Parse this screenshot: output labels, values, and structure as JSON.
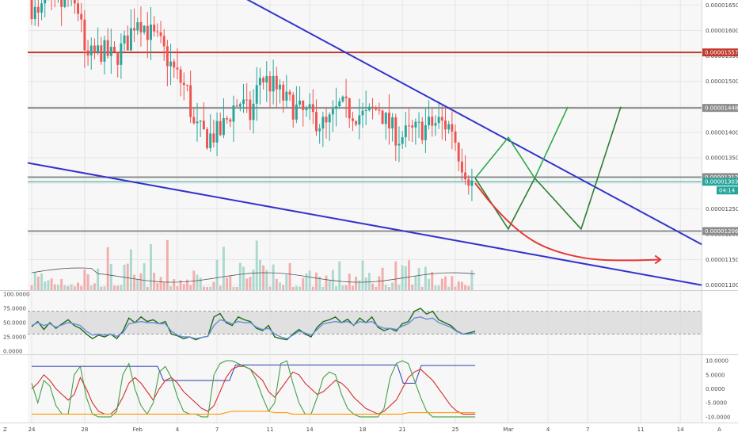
{
  "colors": {
    "up": "#26a69a",
    "down": "#ef5350",
    "volume_up": "#9fd3c7",
    "volume_down": "#f2a0a0",
    "trendline": "#3333cc",
    "resistance_red": "#c0392b",
    "level_gray": "#8c8c8c",
    "projection_green": "#2e7d32",
    "projection_lightgreen": "#2eaa4a",
    "projection_red": "#e53935",
    "current_price": "#26a69a"
  },
  "chart_data": [
    {
      "type": "candlestick",
      "name": "price",
      "ylim": [
        1.09e-05,
        1.66e-05
      ],
      "y_ticks": [
        "0.00001650",
        "0.00001600",
        "0.00001550",
        "0.00001500",
        "0.00001450",
        "0.00001400",
        "0.00001350",
        "0.00001300",
        "0.00001250",
        "0.00001200",
        "0.00001150",
        "0.00001100"
      ],
      "y_tick_values": [
        1.65e-05,
        1.6e-05,
        1.55e-05,
        1.5e-05,
        1.45e-05,
        1.4e-05,
        1.35e-05,
        1.3e-05,
        1.25e-05,
        1.2e-05,
        1.15e-05,
        1.1e-05
      ],
      "x_ticks": [
        "24",
        "28",
        "Feb",
        "4",
        "7",
        "11",
        "14",
        "18",
        "21",
        "25",
        "Mar",
        "4",
        "7",
        "11",
        "14"
      ],
      "x_tick_days": [
        0,
        4,
        8,
        11,
        14,
        18,
        21,
        25,
        28,
        32,
        36,
        39,
        42,
        46,
        49
      ],
      "x_range_days": [
        -0.3,
        50.6
      ],
      "bars_per_day": 4,
      "close_path": [
        [
          0,
          1.66e-05
        ],
        [
          0.8,
          1.62e-05
        ],
        [
          1.2,
          1.655e-05
        ],
        [
          2,
          1.64e-05
        ],
        [
          3,
          1.66e-05
        ],
        [
          4,
          1.63e-05
        ],
        [
          4.2,
          1.54e-05
        ],
        [
          5.5,
          1.56e-05
        ],
        [
          6.5,
          1.545e-05
        ],
        [
          7.5,
          1.58e-05
        ],
        [
          8.2,
          1.63e-05
        ],
        [
          9,
          1.6e-05
        ],
        [
          10,
          1.57e-05
        ],
        [
          11,
          1.52e-05
        ],
        [
          12,
          1.48e-05
        ],
        [
          12.5,
          1.41e-05
        ],
        [
          13.5,
          1.39e-05
        ],
        [
          14.5,
          1.4e-05
        ],
        [
          15.5,
          1.45e-05
        ],
        [
          16,
          1.46e-05
        ],
        [
          16.8,
          1.43e-05
        ],
        [
          17.5,
          1.51e-05
        ],
        [
          18.5,
          1.49e-05
        ],
        [
          19.5,
          1.46e-05
        ],
        [
          20.5,
          1.44e-05
        ],
        [
          21.5,
          1.43e-05
        ],
        [
          22.5,
          1.41e-05
        ],
        [
          23.5,
          1.45e-05
        ],
        [
          24.5,
          1.44e-05
        ],
        [
          25.5,
          1.43e-05
        ],
        [
          26.5,
          1.45e-05
        ],
        [
          27,
          1.42e-05
        ],
        [
          28,
          1.39e-05
        ],
        [
          29,
          1.4e-05
        ],
        [
          30,
          1.41e-05
        ],
        [
          31,
          1.42e-05
        ],
        [
          32,
          1.41e-05
        ],
        [
          32.6,
          1.35e-05
        ],
        [
          33.5,
          1.3e-05
        ]
      ],
      "levels": [
        {
          "value": 1.557e-05,
          "label": "0.00001557",
          "color": "#c0392b"
        },
        {
          "value": 1.448e-05,
          "label": "0.00001448",
          "color": "#8c8c8c"
        },
        {
          "value": 1.312e-05,
          "label": "0.00001312",
          "color": "#8c8c8c"
        },
        {
          "value": 1.206e-05,
          "label": "0.00001206",
          "color": "#8c8c8c"
        }
      ],
      "current_price": {
        "value": 1.303e-05,
        "label": "0.00001303",
        "countdown": "04:14"
      },
      "trendlines": [
        {
          "points": [
            [
              13.5,
              1.7e-05
            ],
            [
              50.6,
              1.18e-05
            ]
          ],
          "color": "#3333cc"
        },
        {
          "points": [
            [
              -0.3,
              1.34e-05
            ],
            [
              50.6,
              1.1e-05
            ]
          ],
          "color": "#3333cc"
        }
      ],
      "projections": [
        {
          "points": [
            [
              33.5,
              1.31e-05
            ],
            [
              36,
              1.39e-05
            ],
            [
              38,
              1.31e-05
            ],
            [
              40.5,
              1.45e-05
            ]
          ],
          "color": "#2eaa4a"
        },
        {
          "points": [
            [
              33.5,
              1.31e-05
            ],
            [
              36,
              1.21e-05
            ],
            [
              38,
              1.31e-05
            ],
            [
              41.5,
              1.21e-05
            ],
            [
              44.5,
              1.45e-05
            ]
          ],
          "color": "#2e7d32"
        },
        {
          "points": [
            [
              33.5,
              1.3e-05
            ],
            [
              35,
              1.25e-05
            ],
            [
              37,
              1.2e-05
            ],
            [
              39,
              1.17e-05
            ],
            [
              42,
              1.15e-05
            ],
            [
              45,
              1.148e-05
            ],
            [
              47.5,
              1.15e-05
            ]
          ],
          "color": "#e53935",
          "arrow": true
        }
      ]
    },
    {
      "type": "line",
      "name": "oscillator-1",
      "ylim": [
        0,
        100
      ],
      "y_ticks": [
        "100.0000",
        "75.0000",
        "50.0000",
        "25.0000",
        "0.0000"
      ],
      "y_tick_values": [
        100,
        75,
        50,
        25,
        0
      ],
      "band": [
        30,
        70
      ],
      "series": [
        {
          "values": [
            43,
            52,
            38,
            50,
            40,
            48,
            55,
            45,
            40,
            30,
            22,
            28,
            25,
            30,
            22,
            35,
            58,
            50,
            60,
            52,
            55,
            48,
            52,
            30,
            27,
            22,
            25,
            20,
            24,
            26,
            60,
            66,
            50,
            45,
            60,
            55,
            52,
            40,
            36,
            45,
            25,
            22,
            20,
            30,
            38,
            30,
            25,
            42,
            52,
            55,
            60,
            50,
            56,
            45,
            58,
            50,
            60,
            42,
            36,
            40,
            35,
            48,
            52,
            70,
            75,
            65,
            70,
            55,
            50,
            45,
            35,
            30,
            32,
            35
          ],
          "color": "#1b6b1b"
        },
        {
          "values": [
            45,
            50,
            45,
            48,
            42,
            46,
            50,
            48,
            45,
            35,
            28,
            30,
            28,
            30,
            26,
            32,
            48,
            50,
            52,
            50,
            50,
            48,
            48,
            35,
            28,
            25,
            25,
            22,
            24,
            26,
            45,
            55,
            52,
            48,
            52,
            50,
            50,
            42,
            38,
            40,
            30,
            25,
            22,
            28,
            35,
            32,
            28,
            38,
            48,
            50,
            52,
            50,
            52,
            46,
            52,
            50,
            52,
            44,
            40,
            40,
            38,
            44,
            48,
            58,
            60,
            56,
            58,
            50,
            46,
            42,
            34,
            30,
            30,
            32
          ],
          "color": "#6b8fd6"
        }
      ]
    },
    {
      "type": "line",
      "name": "oscillator-2",
      "ylim": [
        -12,
        12
      ],
      "y_ticks": [
        "10.0000",
        "5.0000",
        "0.0000",
        "-5.0000",
        "-10.0000"
      ],
      "y_tick_values": [
        10,
        5,
        0,
        -5,
        -10
      ],
      "series": [
        {
          "values": [
            8,
            8,
            8,
            8,
            8,
            8,
            8,
            8,
            8,
            8,
            8,
            8,
            8,
            8,
            8,
            8,
            8,
            8,
            8,
            8,
            8,
            8,
            3,
            3,
            3,
            3,
            3,
            3,
            3,
            3,
            3,
            3,
            3,
            3,
            8.5,
            8.5,
            8.5,
            8.5,
            8.5,
            8.5,
            8.5,
            8.5,
            8.5,
            8.5,
            8.5,
            8.5,
            8.5,
            8.5,
            8.5,
            8.5,
            8.5,
            8.5,
            8.5,
            8.5,
            8.5,
            8.5,
            8.5,
            8.5,
            8.5,
            8.5,
            8.5,
            8.5,
            2,
            2,
            2,
            8.3,
            8.3,
            8.3,
            8.3,
            8.3,
            8.3,
            8.3,
            8.3,
            8.3,
            8.3
          ],
          "color": "#3f51b5"
        },
        {
          "values": [
            0,
            2,
            5,
            3,
            0,
            -2,
            -4,
            -2,
            4,
            0,
            -5,
            -8,
            -9,
            -9,
            -7,
            -3,
            2,
            4,
            2,
            -1,
            -4,
            0,
            3,
            4,
            2,
            -1,
            -3,
            -5,
            -7,
            -8,
            -6,
            -1,
            4,
            7,
            8,
            8,
            7,
            5,
            3,
            -1,
            -3,
            0,
            3,
            6,
            5,
            2,
            0,
            -2,
            -1,
            1,
            3,
            2,
            0,
            -3,
            -5,
            -7,
            -8,
            -9,
            -8,
            -6,
            -4,
            0,
            4,
            6,
            7,
            5,
            3,
            0,
            -3,
            -6,
            -8,
            -9,
            -9,
            -9
          ],
          "color": "#d32f2f"
        },
        {
          "values": [
            2,
            -5,
            3,
            1,
            -6,
            -9,
            -9,
            5,
            8,
            -3,
            -9,
            -10,
            -10,
            -10,
            -8,
            5,
            9,
            0,
            -6,
            -9,
            -5,
            6,
            8,
            4,
            -3,
            -8,
            -9,
            -9,
            -10,
            -10,
            5,
            9,
            10,
            10,
            9,
            8,
            7,
            3,
            -3,
            -8,
            -5,
            9,
            10,
            2,
            -5,
            -9,
            -9,
            -3,
            4,
            6,
            5,
            -2,
            -7,
            -9,
            -10,
            -10,
            -10,
            -10,
            -7,
            4,
            9,
            10,
            9,
            3,
            -3,
            -8,
            -10,
            -10,
            -10,
            -10,
            -10,
            -10,
            -10,
            -10
          ],
          "color": "#43a047"
        },
        {
          "values": [
            -9,
            -9,
            -9,
            -9,
            -9,
            -9,
            -9,
            -9,
            -9,
            -9,
            -9,
            -9,
            -9,
            -9,
            -9,
            -9,
            -9,
            -9,
            -9,
            -9,
            -9,
            -9,
            -9,
            -9,
            -9,
            -9,
            -9,
            -9,
            -9,
            -9,
            -9,
            -9,
            -8.5,
            -8,
            -8,
            -8,
            -8,
            -8,
            -8,
            -8,
            -8.5,
            -8.5,
            -8.5,
            -9,
            -9,
            -9,
            -9,
            -9,
            -9,
            -9,
            -9,
            -9,
            -9,
            -9,
            -9,
            -9,
            -9,
            -9,
            -9,
            -9,
            -9,
            -9,
            -8.5,
            -8.5,
            -8.5,
            -8.5,
            -8.5,
            -8.5,
            -8.5,
            -8.5,
            -8.5,
            -8.5,
            -8.5,
            -8.5
          ],
          "color": "#ff9800"
        }
      ]
    }
  ]
}
